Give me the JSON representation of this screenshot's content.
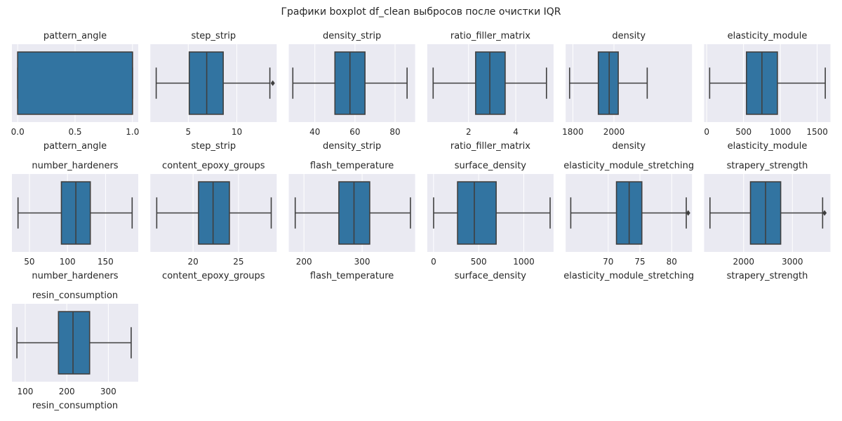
{
  "suptitle": "Графики boxplot df_clean выбросов после очистки IQR",
  "style": {
    "axes_bg": "#eaeaf2",
    "grid_color": "#ffffff",
    "box_fill": "#3274a1",
    "line_color": "#3f3f3f",
    "text_color": "#262626"
  },
  "chart_data": [
    {
      "type": "box",
      "title": "pattern_angle",
      "xlabel": "pattern_angle",
      "xlim": [
        -0.05,
        1.05
      ],
      "ticks": [
        0,
        0.5,
        1
      ],
      "tick_labels": [
        "0.0",
        "0.5",
        "1.0"
      ],
      "stats": {
        "whislo": 0,
        "q1": 0,
        "med": 1,
        "q3": 1,
        "whishi": 1
      },
      "outliers": []
    },
    {
      "type": "box",
      "title": "step_strip",
      "xlabel": "step_strip",
      "xlim": [
        1.1,
        14.1
      ],
      "ticks": [
        5,
        10
      ],
      "tick_labels": [
        "5",
        "10"
      ],
      "stats": {
        "whislo": 1.7,
        "q1": 5.1,
        "med": 6.9,
        "q3": 8.6,
        "whishi": 13.4
      },
      "outliers": [
        13.7
      ]
    },
    {
      "type": "box",
      "title": "density_strip",
      "xlabel": "density_strip",
      "xlim": [
        27,
        90
      ],
      "ticks": [
        40,
        60,
        80
      ],
      "tick_labels": [
        "40",
        "60",
        "80"
      ],
      "stats": {
        "whislo": 29,
        "q1": 50,
        "med": 57.5,
        "q3": 65,
        "whishi": 86
      },
      "outliers": []
    },
    {
      "type": "box",
      "title": "ratio_filler_matrix",
      "xlabel": "ratio_filler_matrix",
      "xlim": [
        0.25,
        5.6
      ],
      "ticks": [
        2,
        4
      ],
      "tick_labels": [
        "2",
        "4"
      ],
      "stats": {
        "whislo": 0.5,
        "q1": 2.3,
        "med": 2.9,
        "q3": 3.55,
        "whishi": 5.3
      },
      "outliers": []
    },
    {
      "type": "box",
      "title": "density",
      "xlabel": "density",
      "xlim": [
        1765,
        2380
      ],
      "ticks": [
        1800,
        2000
      ],
      "tick_labels": [
        "1800",
        "2000"
      ],
      "stats": {
        "whislo": 1784,
        "q1": 1924,
        "med": 1977,
        "q3": 2021,
        "whishi": 2162
      },
      "outliers": []
    },
    {
      "type": "box",
      "title": "elasticity_module",
      "xlabel": "elasticity_module",
      "xlim": [
        -35,
        1680
      ],
      "ticks": [
        0,
        500,
        1000,
        1500
      ],
      "tick_labels": [
        "0",
        "500",
        "1000",
        "1500"
      ],
      "stats": {
        "whislo": 40,
        "q1": 540,
        "med": 750,
        "q3": 960,
        "whishi": 1610
      },
      "outliers": []
    },
    {
      "type": "box",
      "title": "number_hardeners",
      "xlabel": "number_hardeners",
      "xlim": [
        27,
        193
      ],
      "ticks": [
        50,
        100,
        150
      ],
      "tick_labels": [
        "50",
        "100",
        "150"
      ],
      "stats": {
        "whislo": 35,
        "q1": 92,
        "med": 111,
        "q3": 130,
        "whishi": 185
      },
      "outliers": []
    },
    {
      "type": "box",
      "title": "content_epoxy_groups",
      "xlabel": "content_epoxy_groups",
      "xlim": [
        15.3,
        29.2
      ],
      "ticks": [
        20,
        25
      ],
      "tick_labels": [
        "20",
        "25"
      ],
      "stats": {
        "whislo": 16,
        "q1": 20.6,
        "med": 22.2,
        "q3": 24.0,
        "whishi": 28.6
      },
      "outliers": []
    },
    {
      "type": "box",
      "title": "flash_temperature",
      "xlabel": "flash_temperature",
      "xlim": [
        174,
        391
      ],
      "ticks": [
        200,
        300
      ],
      "tick_labels": [
        "200",
        "300"
      ],
      "stats": {
        "whislo": 185,
        "q1": 260,
        "med": 286,
        "q3": 313,
        "whishi": 383
      },
      "outliers": []
    },
    {
      "type": "box",
      "title": "surface_density",
      "xlabel": "surface_density",
      "xlim": [
        -70,
        1330
      ],
      "ticks": [
        0,
        500,
        1000
      ],
      "tick_labels": [
        "0",
        "500",
        "1000"
      ],
      "stats": {
        "whislo": 0.6,
        "q1": 266,
        "med": 452,
        "q3": 694,
        "whishi": 1292
      },
      "outliers": []
    },
    {
      "type": "box",
      "title": "elasticity_module_stretching",
      "xlabel": "elasticity_module_stretching",
      "xlim": [
        63.3,
        83.2
      ],
      "ticks": [
        70,
        75,
        80
      ],
      "tick_labels": [
        "70",
        "75",
        "80"
      ],
      "stats": {
        "whislo": 64.1,
        "q1": 71.3,
        "med": 73.3,
        "q3": 75.3,
        "whishi": 82.3
      },
      "outliers": [
        82.6
      ]
    },
    {
      "type": "box",
      "title": "strapery_strength",
      "xlabel": "strapery_strength",
      "xlim": [
        1190,
        3780
      ],
      "ticks": [
        2000,
        3000
      ],
      "tick_labels": [
        "2000",
        "3000"
      ],
      "stats": {
        "whislo": 1310,
        "q1": 2140,
        "med": 2450,
        "q3": 2760,
        "whishi": 3620
      },
      "outliers": [
        3660
      ]
    },
    {
      "type": "box",
      "title": "resin_consumption",
      "xlabel": "resin_consumption",
      "xlim": [
        68,
        372
      ],
      "ticks": [
        100,
        200,
        300
      ],
      "tick_labels": [
        "100",
        "200",
        "300"
      ],
      "stats": {
        "whislo": 80,
        "q1": 180,
        "med": 215,
        "q3": 255,
        "whishi": 355
      },
      "outliers": []
    }
  ]
}
